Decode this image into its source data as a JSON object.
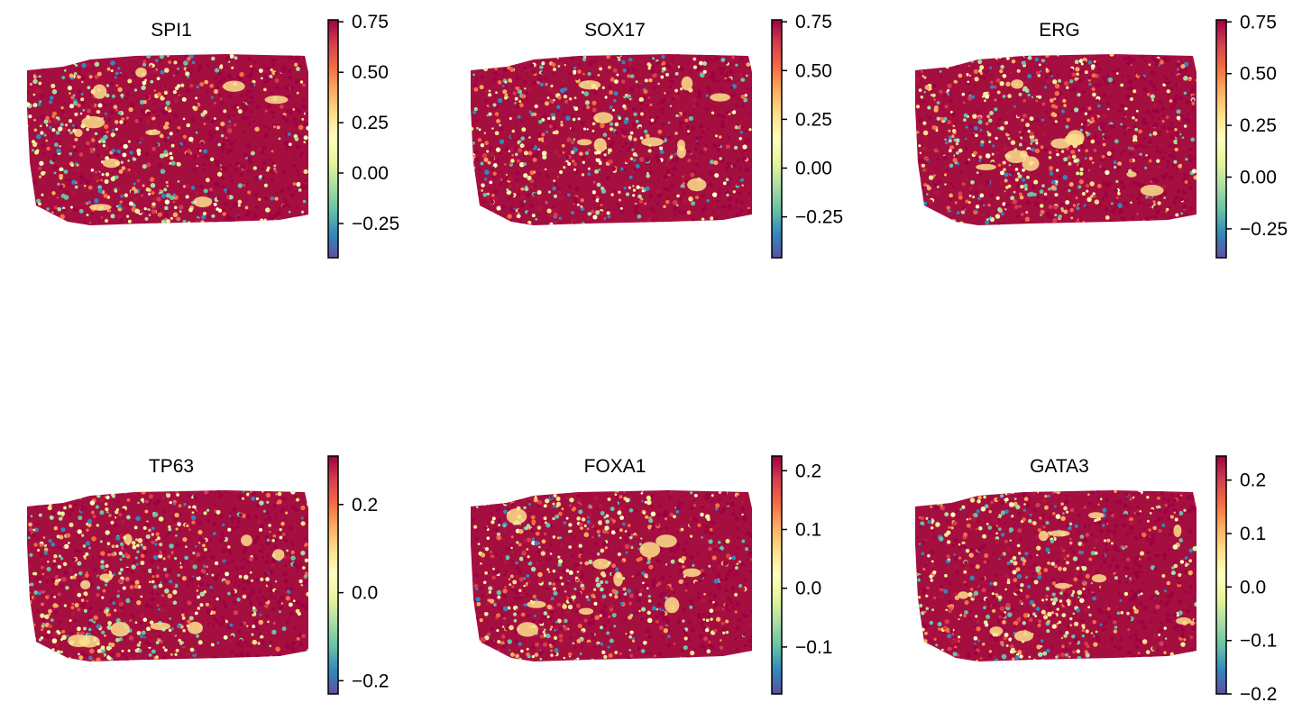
{
  "chart_data": [
    {
      "type": "scatter",
      "title": "SPI1",
      "colormap": "Spectral_r",
      "clim": [
        -0.42,
        0.76
      ],
      "ticks": [
        -0.25,
        0.0,
        0.25,
        0.5,
        0.75
      ],
      "tick_labels": [
        "−0.25",
        "0.00",
        "0.25",
        "0.50",
        "0.75"
      ]
    },
    {
      "type": "scatter",
      "title": "SOX17",
      "colormap": "Spectral_r",
      "clim": [
        -0.46,
        0.76
      ],
      "ticks": [
        -0.25,
        0.0,
        0.25,
        0.5,
        0.75
      ],
      "tick_labels": [
        "−0.25",
        "0.00",
        "0.25",
        "0.50",
        "0.75"
      ]
    },
    {
      "type": "scatter",
      "title": "ERG",
      "colormap": "Spectral_r",
      "clim": [
        -0.39,
        0.76
      ],
      "ticks": [
        -0.25,
        0.0,
        0.25,
        0.5,
        0.75
      ],
      "tick_labels": [
        "−0.25",
        "0.00",
        "0.25",
        "0.50",
        "0.75"
      ]
    },
    {
      "type": "scatter",
      "title": "TP63",
      "colormap": "Spectral_r",
      "clim": [
        -0.23,
        0.31
      ],
      "ticks": [
        -0.2,
        0.0,
        0.2
      ],
      "tick_labels": [
        "−0.2",
        "0.0",
        "0.2"
      ]
    },
    {
      "type": "scatter",
      "title": "FOXA1",
      "colormap": "Spectral_r",
      "clim": [
        -0.18,
        0.225
      ],
      "ticks": [
        -0.1,
        0.0,
        0.1,
        0.2
      ],
      "tick_labels": [
        "−0.1",
        "0.0",
        "0.1",
        "0.2"
      ]
    },
    {
      "type": "scatter",
      "title": "GATA3",
      "colormap": "Spectral_r",
      "clim": [
        -0.2,
        0.245
      ],
      "ticks": [
        -0.2,
        -0.1,
        0.0,
        0.1,
        0.2
      ],
      "tick_labels": [
        "−0.2",
        "−0.1",
        "0.0",
        "0.1",
        "0.2"
      ]
    }
  ],
  "colors": {
    "high": "#9e0142",
    "mid_high": "#f46d43",
    "mid": "#ffffbf",
    "mid_low": "#66c2a5",
    "low": "#5e4fa2"
  }
}
